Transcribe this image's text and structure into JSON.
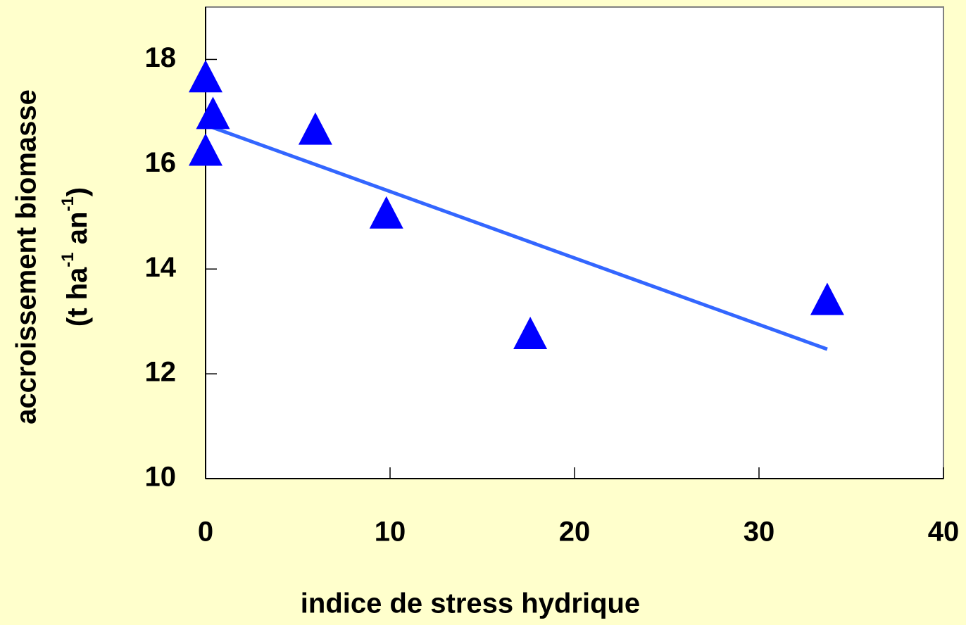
{
  "chart_data": {
    "type": "scatter",
    "x_label": "indice de stress hydrique",
    "y_label": "accroissement biomasse",
    "y_unit": [
      "(t ha",
      "-1",
      " an",
      "-1",
      ")"
    ],
    "x": [
      0,
      0.4,
      0,
      5.95,
      9.8,
      17.6,
      33.7
    ],
    "values": [
      17.6,
      16.9,
      16.2,
      16.6,
      15.0,
      12.7,
      13.35
    ],
    "color": "#0000ff",
    "trendline": {
      "x": [
        0,
        33.7
      ],
      "values": [
        16.75,
        12.47
      ],
      "color": "#3366ff"
    },
    "xlim": [
      0,
      40
    ],
    "xticks": [
      0,
      10,
      20,
      30,
      40
    ],
    "ylim": [
      10,
      19
    ],
    "yticks": [
      10,
      12,
      14,
      16,
      18
    ]
  }
}
